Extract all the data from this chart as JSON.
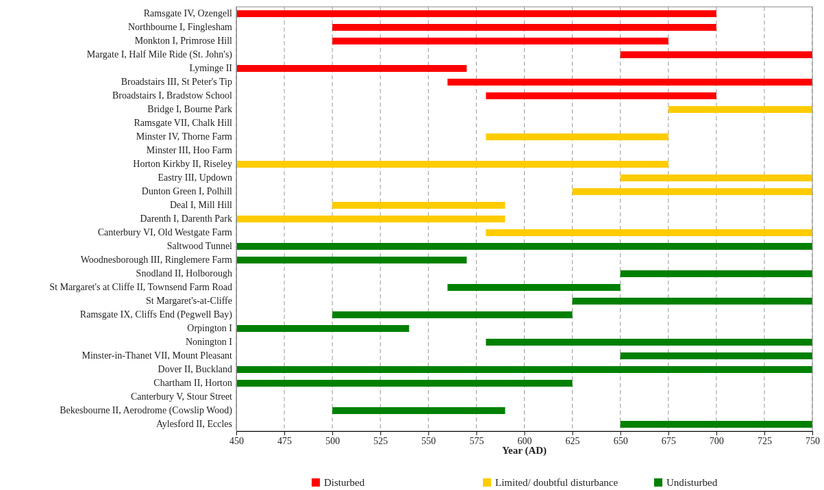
{
  "chart_data": {
    "type": "bar",
    "orientation": "horizontal",
    "xlabel": "Year (AD)",
    "categories": [
      "Ramsgate IV, Ozengell",
      "Northbourne I, Finglesham",
      "Monkton I, Primrose Hill",
      "Margate I, Half Mile Ride (St. John's)",
      "Lyminge II",
      "Broadstairs III, St Peter's Tip",
      "Broadstairs I, Bradstow School",
      "Bridge I, Bourne Park",
      "Ramsgate VII, Chalk Hill",
      "Minster IV, Thorne Farm",
      "Minster III, Hoo Farm",
      "Horton Kirkby II, Riseley",
      "Eastry III, Updown",
      "Dunton Green I, Polhill",
      "Deal I, Mill Hill",
      "Darenth I, Darenth Park",
      "Canterbury VI, Old Westgate Farm",
      "Saltwood Tunnel",
      "Woodnesborough III, Ringlemere Farm",
      "Snodland II, Holborough",
      "St Margaret's at Cliffe II, Townsend Farm Road",
      "St Margaret's-at-Cliffe",
      "Ramsgate IX, Cliffs End (Pegwell Bay)",
      "Orpington I",
      "Nonington I",
      "Minster-in-Thanet VII, Mount Pleasant",
      "Dover II, Buckland",
      "Chartham II, Horton",
      "Canterbury V, Stour Street",
      "Bekesbourne II, Aerodrome (Cowslip Wood)",
      "Aylesford II, Eccles"
    ],
    "series": [
      {
        "name": "Disturbed",
        "color": "#ff0000",
        "base": [
          450,
          500,
          500,
          650,
          450,
          560,
          580,
          null,
          null,
          null,
          null,
          null,
          null,
          null,
          null,
          null,
          null,
          null,
          null,
          null,
          null,
          null,
          null,
          null,
          null,
          null,
          null,
          null,
          null,
          null,
          null
        ],
        "values": [
          250,
          200,
          175,
          100,
          120,
          190,
          120,
          null,
          null,
          null,
          null,
          null,
          null,
          null,
          null,
          null,
          null,
          null,
          null,
          null,
          null,
          null,
          null,
          null,
          null,
          null,
          null,
          null,
          null,
          null,
          null
        ]
      },
      {
        "name": "Limited/ doubtful disturbance",
        "color": "#ffcc00",
        "base": [
          null,
          null,
          null,
          null,
          null,
          null,
          null,
          675,
          null,
          580,
          null,
          450,
          650,
          625,
          500,
          450,
          580,
          null,
          null,
          null,
          null,
          null,
          null,
          null,
          null,
          null,
          null,
          null,
          null,
          null,
          null
        ],
        "values": [
          null,
          null,
          null,
          null,
          null,
          null,
          null,
          75,
          null,
          95,
          null,
          225,
          100,
          125,
          90,
          140,
          170,
          null,
          null,
          null,
          null,
          null,
          null,
          null,
          null,
          null,
          null,
          null,
          null,
          null,
          null
        ]
      },
      {
        "name": "Undisturbed",
        "color": "#008000",
        "base": [
          null,
          null,
          null,
          null,
          null,
          null,
          null,
          null,
          null,
          null,
          null,
          null,
          null,
          null,
          null,
          null,
          null,
          450,
          450,
          650,
          560,
          625,
          500,
          450,
          580,
          650,
          450,
          450,
          null,
          500,
          650
        ],
        "values": [
          null,
          null,
          null,
          null,
          null,
          null,
          null,
          null,
          null,
          null,
          null,
          null,
          null,
          null,
          null,
          null,
          null,
          300,
          120,
          100,
          90,
          125,
          125,
          90,
          170,
          100,
          300,
          175,
          null,
          90,
          100
        ]
      }
    ],
    "xlim": [
      450,
      750
    ],
    "xticks": [
      450,
      475,
      500,
      525,
      550,
      575,
      600,
      625,
      650,
      675,
      700,
      725,
      750
    ],
    "grid": "x",
    "line_style": "dashed",
    "legend": "bottom"
  }
}
